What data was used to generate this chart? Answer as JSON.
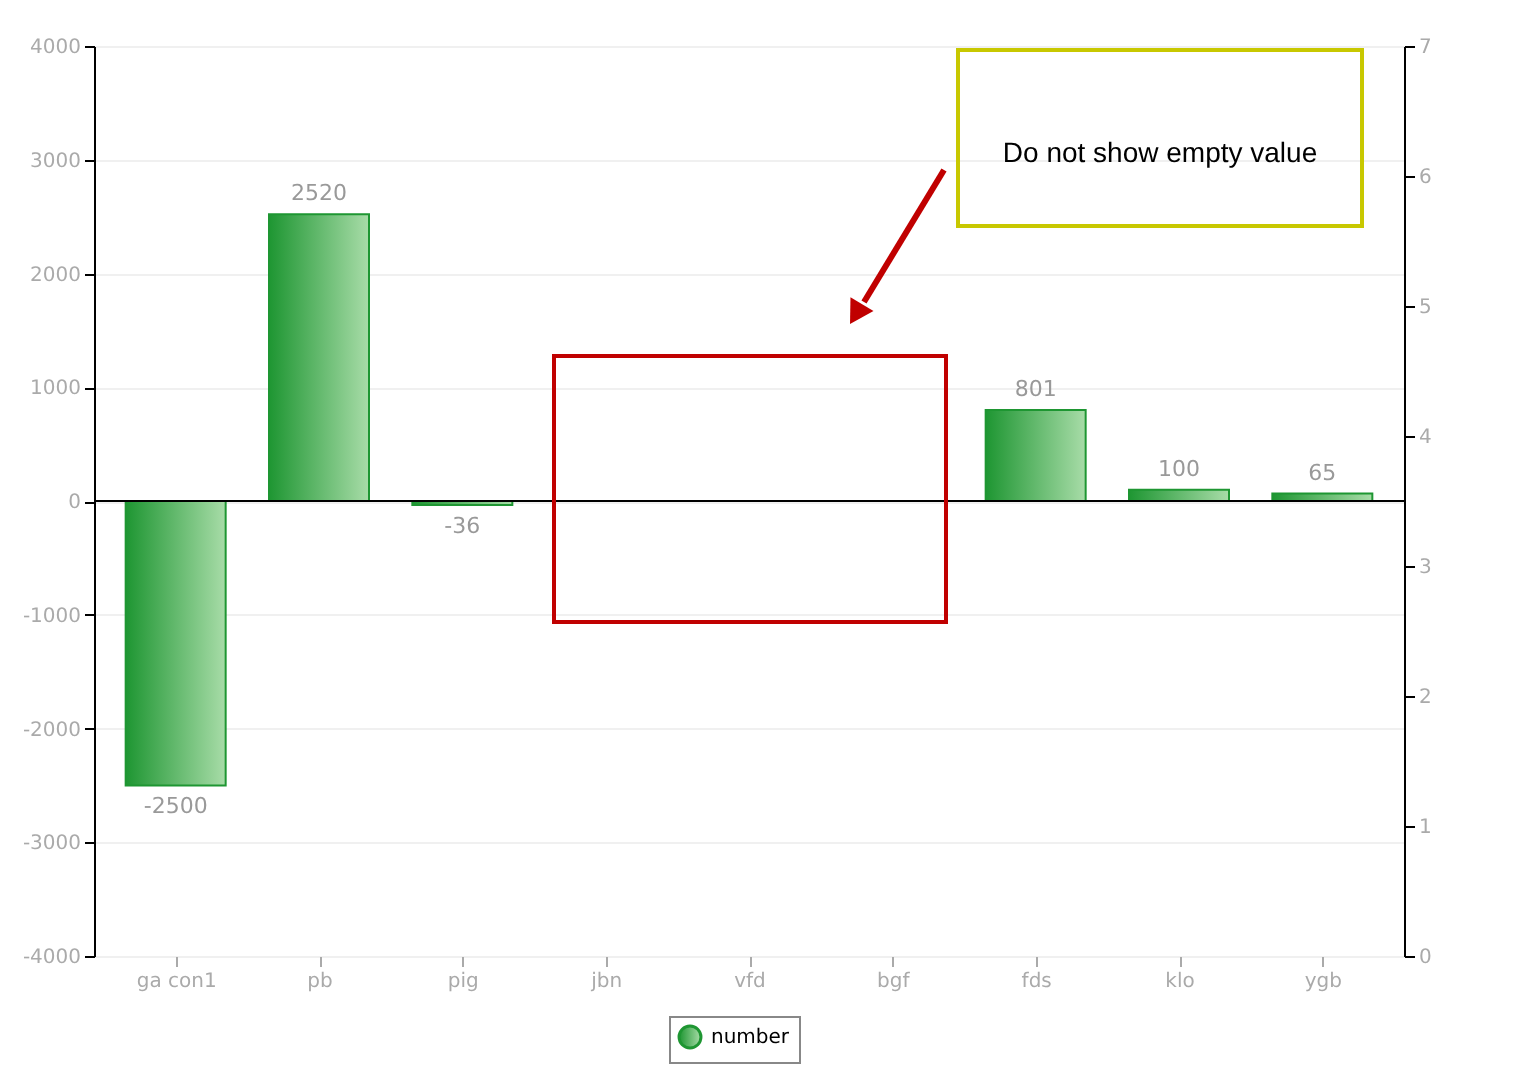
{
  "chart_data": {
    "type": "bar",
    "categories": [
      "ga con1",
      "pb",
      "pig",
      "jbn",
      "vfd",
      "bgf",
      "fds",
      "klo",
      "ygb"
    ],
    "series": [
      {
        "name": "number",
        "color": "#1e9632",
        "values": [
          -2500,
          2520,
          -36,
          null,
          null,
          null,
          801,
          100,
          65
        ]
      }
    ],
    "ylim": [
      -4000,
      4000
    ],
    "yticks": [
      -4000,
      -3000,
      -2000,
      -1000,
      0,
      1000,
      2000,
      3000,
      4000
    ],
    "y2lim": [
      0,
      7
    ],
    "y2ticks": [
      0,
      1,
      2,
      3,
      4,
      5,
      6,
      7
    ],
    "ref_lines": [
      {
        "axis": "y",
        "value": 0,
        "color": "#000000"
      }
    ],
    "annotations": [
      "Do not show empty value"
    ],
    "data_labels": true,
    "grid": "y",
    "legend": "bottom"
  }
}
